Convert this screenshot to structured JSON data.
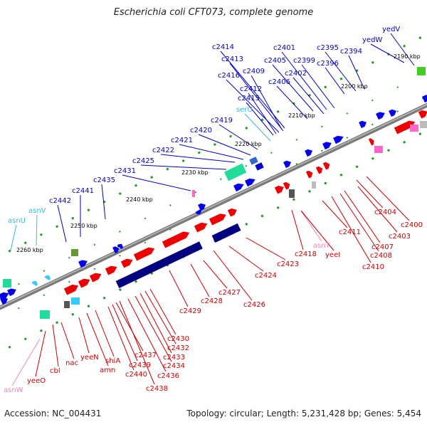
{
  "header": {
    "title": "Escherichia coli CFT073, complete genome"
  },
  "footer": {
    "accession": "Accession: NC_004431",
    "summary": "Topology: circular; Length: 5,231,428 bp; Genes: 5,454"
  },
  "colors": {
    "backbone": "#888888",
    "forward_gene": "#0000ee",
    "reverse_gene": "#ee0000",
    "operon_dark": "#000080",
    "rna": "#33ccff",
    "trna": "#ff66cc",
    "misc": "#669933"
  },
  "scale_ticks": [
    {
      "label": "2190 kbp"
    },
    {
      "label": "2200 kbp"
    },
    {
      "label": "2210 kbp"
    },
    {
      "label": "2220 kbp"
    },
    {
      "label": "2230 kbp"
    },
    {
      "label": "2240 kbp"
    },
    {
      "label": "2250 kbp"
    },
    {
      "label": "2260 kbp"
    }
  ],
  "labels_top": [
    {
      "text": "yedV",
      "color": "#0000cc"
    },
    {
      "text": "yedW",
      "color": "#0000cc"
    },
    {
      "text": "c2395",
      "color": "#0000cc"
    },
    {
      "text": "c2394",
      "color": "#0000cc"
    },
    {
      "text": "c2396",
      "color": "#0000cc"
    },
    {
      "text": "c2401",
      "color": "#0000cc"
    },
    {
      "text": "c2399",
      "color": "#0000cc"
    },
    {
      "text": "c2405",
      "color": "#0000cc"
    },
    {
      "text": "c2402",
      "color": "#0000cc"
    },
    {
      "text": "c2406",
      "color": "#0000cc"
    },
    {
      "text": "c2414",
      "color": "#0000cc"
    },
    {
      "text": "c2413",
      "color": "#0000cc"
    },
    {
      "text": "c2409",
      "color": "#0000cc"
    },
    {
      "text": "c2416",
      "color": "#0000cc"
    },
    {
      "text": "c2412",
      "color": "#0000cc"
    },
    {
      "text": "c2415",
      "color": "#0000cc"
    },
    {
      "text": "serU",
      "color": "#33bbdd"
    },
    {
      "text": "c2419",
      "color": "#0000cc"
    },
    {
      "text": "c2420",
      "color": "#0000cc"
    },
    {
      "text": "c2421",
      "color": "#0000cc"
    },
    {
      "text": "c2422",
      "color": "#0000cc"
    },
    {
      "text": "c2425",
      "color": "#0000cc"
    },
    {
      "text": "c2431",
      "color": "#0000cc"
    },
    {
      "text": "c2435",
      "color": "#0000cc"
    },
    {
      "text": "c2441",
      "color": "#0000cc"
    },
    {
      "text": "c2442",
      "color": "#0000cc"
    },
    {
      "text": "asnV",
      "color": "#33bbdd"
    },
    {
      "text": "asnU",
      "color": "#33bbdd"
    }
  ],
  "labels_bottom": [
    {
      "text": "c2400",
      "color": "#cc0000"
    },
    {
      "text": "c2404",
      "color": "#cc0000"
    },
    {
      "text": "c2403",
      "color": "#cc0000"
    },
    {
      "text": "c2407",
      "color": "#cc0000"
    },
    {
      "text": "c2408",
      "color": "#cc0000"
    },
    {
      "text": "c2411",
      "color": "#cc0000"
    },
    {
      "text": "c2410",
      "color": "#cc0000"
    },
    {
      "text": "asnT",
      "color": "#ee88bb"
    },
    {
      "text": "yeeI",
      "color": "#cc0000"
    },
    {
      "text": "c2418",
      "color": "#cc0000"
    },
    {
      "text": "c2423",
      "color": "#cc0000"
    },
    {
      "text": "c2424",
      "color": "#cc0000"
    },
    {
      "text": "c2426",
      "color": "#cc0000"
    },
    {
      "text": "c2427",
      "color": "#cc0000"
    },
    {
      "text": "c2428",
      "color": "#cc0000"
    },
    {
      "text": "c2429",
      "color": "#cc0000"
    },
    {
      "text": "c2430",
      "color": "#cc0000"
    },
    {
      "text": "c2432",
      "color": "#cc0000"
    },
    {
      "text": "c2433",
      "color": "#cc0000"
    },
    {
      "text": "c2434",
      "color": "#cc0000"
    },
    {
      "text": "c2436",
      "color": "#cc0000"
    },
    {
      "text": "c2437",
      "color": "#cc0000"
    },
    {
      "text": "c2439",
      "color": "#cc0000"
    },
    {
      "text": "c2440",
      "color": "#cc0000"
    },
    {
      "text": "c2438",
      "color": "#cc0000"
    },
    {
      "text": "shiA",
      "color": "#cc0000"
    },
    {
      "text": "amn",
      "color": "#cc0000"
    },
    {
      "text": "yeeN",
      "color": "#cc0000"
    },
    {
      "text": "nac",
      "color": "#cc0000"
    },
    {
      "text": "cbl",
      "color": "#cc0000"
    },
    {
      "text": "yeeO",
      "color": "#cc0000"
    },
    {
      "text": "asnW",
      "color": "#ee88bb"
    }
  ]
}
